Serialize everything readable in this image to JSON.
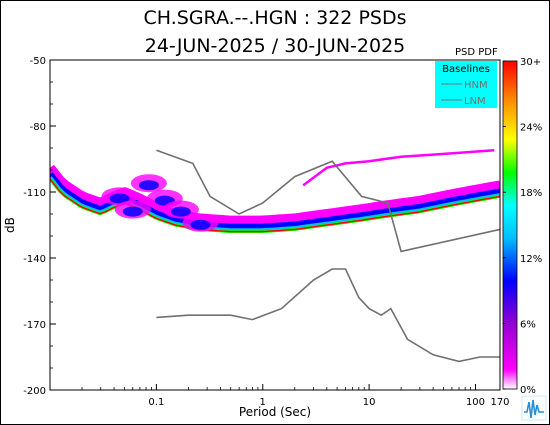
{
  "chart_data": {
    "type": "heatmap",
    "title": "CH.SGRA.--.HGN : 322 PSDs",
    "subtitle": "24-JUN-2025 / 30-JUN-2025",
    "xlabel": "Period (Sec)",
    "ylabel": "dB",
    "x_scale": "log",
    "xlim": [
      0.01,
      170
    ],
    "ylim": [
      -200,
      -50
    ],
    "x_ticks": [
      {
        "value": 0.1,
        "label": "0.1"
      },
      {
        "value": 1,
        "label": "1"
      },
      {
        "value": 10,
        "label": "10"
      },
      {
        "value": 100,
        "label": "100"
      },
      {
        "value": 170,
        "label": "170"
      }
    ],
    "y_ticks": [
      {
        "value": -50,
        "label": "-50"
      },
      {
        "value": -80,
        "label": "-80"
      },
      {
        "value": -110,
        "label": "-110"
      },
      {
        "value": -140,
        "label": "-140"
      },
      {
        "value": -170,
        "label": "-170"
      },
      {
        "value": -200,
        "label": "-200"
      }
    ],
    "colorbar": {
      "title": "PSD PDF",
      "ticks": [
        "30+",
        "24%",
        "18%",
        "12%",
        "6%",
        "0%"
      ],
      "colors": [
        "#ffffff",
        "#ff00ff",
        "#9400d3",
        "#0000ff",
        "#00bfff",
        "#00ffff",
        "#00ff00",
        "#ffff00",
        "#ff8c00",
        "#ff0000"
      ]
    },
    "legend": {
      "title": "Baselines",
      "placement": "top-right",
      "entries": [
        "HNM",
        "LNM"
      ],
      "background": "#00ffff"
    },
    "series": [
      {
        "name": "HNM",
        "color": "#707070",
        "points": [
          [
            0.1,
            -91
          ],
          [
            0.22,
            -97
          ],
          [
            0.32,
            -112
          ],
          [
            0.6,
            -120
          ],
          [
            1.0,
            -115
          ],
          [
            2.0,
            -103
          ],
          [
            4.5,
            -96
          ],
          [
            8.5,
            -112
          ],
          [
            15,
            -115
          ],
          [
            20,
            -137
          ],
          [
            170,
            -127
          ]
        ]
      },
      {
        "name": "LNM",
        "color": "#707070",
        "points": [
          [
            0.1,
            -167
          ],
          [
            0.2,
            -166
          ],
          [
            0.5,
            -166
          ],
          [
            0.8,
            -168
          ],
          [
            1.5,
            -163
          ],
          [
            3.0,
            -150
          ],
          [
            4.5,
            -145
          ],
          [
            6.0,
            -145
          ],
          [
            8.0,
            -158
          ],
          [
            10,
            -163
          ],
          [
            13,
            -166
          ],
          [
            16,
            -163
          ],
          [
            23,
            -177
          ],
          [
            40,
            -184
          ],
          [
            70,
            -187
          ],
          [
            110,
            -185
          ],
          [
            170,
            -185
          ]
        ]
      }
    ],
    "pdf_mode": [
      [
        0.01,
        -104
      ],
      [
        0.013,
        -111
      ],
      [
        0.02,
        -117
      ],
      [
        0.03,
        -120
      ],
      [
        0.04,
        -117
      ],
      [
        0.05,
        -115
      ],
      [
        0.07,
        -118
      ],
      [
        0.1,
        -122
      ],
      [
        0.15,
        -125
      ],
      [
        0.25,
        -127
      ],
      [
        0.5,
        -128
      ],
      [
        1.0,
        -128
      ],
      [
        2.0,
        -127
      ],
      [
        4.0,
        -125
      ],
      [
        8.0,
        -123
      ],
      [
        15,
        -121
      ],
      [
        30,
        -119
      ],
      [
        60,
        -116
      ],
      [
        100,
        -114
      ],
      [
        170,
        -112
      ]
    ],
    "grid": false
  }
}
